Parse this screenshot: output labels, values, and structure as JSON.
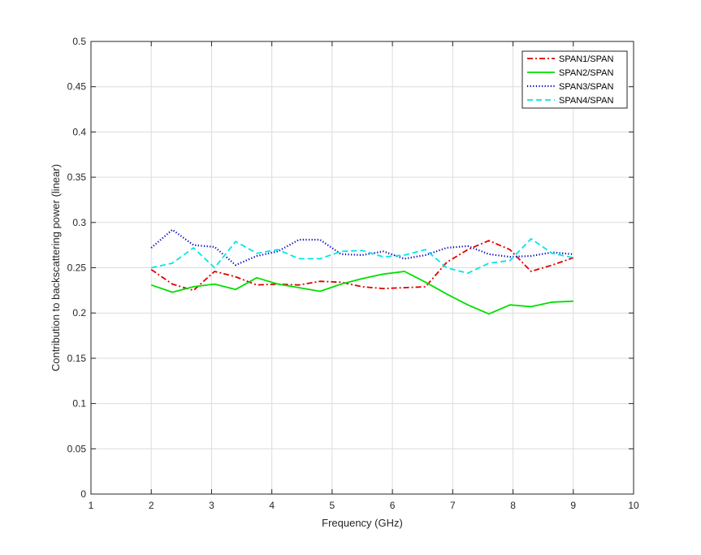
{
  "chart_data": {
    "type": "line",
    "title": "",
    "xlabel": "Frequency (GHz)",
    "ylabel": "Contribution to backscattering power (linear)",
    "xlim": [
      1,
      10
    ],
    "ylim": [
      0,
      0.5
    ],
    "xticks": [
      1,
      2,
      3,
      4,
      5,
      6,
      7,
      8,
      9,
      10
    ],
    "yticks": [
      0,
      0.05,
      0.1,
      0.15,
      0.2,
      0.25,
      0.3,
      0.35,
      0.4,
      0.45,
      0.5
    ],
    "xtick_labels": [
      "1",
      "2",
      "3",
      "4",
      "5",
      "6",
      "7",
      "8",
      "9",
      "10"
    ],
    "ytick_labels": [
      "0",
      "0.05",
      "0.1",
      "0.15",
      "0.2",
      "0.25",
      "0.3",
      "0.35",
      "0.4",
      "0.45",
      "0.5"
    ],
    "grid": true,
    "legend_position": "top-right",
    "x": [
      2,
      2.35,
      2.7,
      3.05,
      3.4,
      3.75,
      4.1,
      4.45,
      4.8,
      5.15,
      5.5,
      5.85,
      6.2,
      6.55,
      6.9,
      7.25,
      7.6,
      7.95,
      8.3,
      8.65,
      9
    ],
    "series": [
      {
        "name": "SPAN1/SPAN",
        "color": "#e00000",
        "dash": "dashdot",
        "values": [
          0.248,
          0.232,
          0.225,
          0.246,
          0.24,
          0.231,
          0.232,
          0.231,
          0.235,
          0.234,
          0.229,
          0.227,
          0.228,
          0.229,
          0.256,
          0.27,
          0.28,
          0.27,
          0.246,
          0.253,
          0.261
        ]
      },
      {
        "name": "SPAN2/SPAN",
        "color": "#00e000",
        "dash": "solid",
        "values": [
          0.231,
          0.223,
          0.229,
          0.232,
          0.226,
          0.239,
          0.232,
          0.228,
          0.224,
          0.232,
          0.238,
          0.243,
          0.246,
          0.234,
          0.221,
          0.209,
          0.199,
          0.209,
          0.207,
          0.212,
          0.213
        ]
      },
      {
        "name": "SPAN3/SPAN",
        "color": "#0000c0",
        "dash": "dotted",
        "values": [
          0.272,
          0.292,
          0.275,
          0.273,
          0.253,
          0.263,
          0.268,
          0.281,
          0.281,
          0.265,
          0.264,
          0.268,
          0.26,
          0.264,
          0.272,
          0.274,
          0.265,
          0.262,
          0.263,
          0.267,
          0.265
        ]
      },
      {
        "name": "SPAN4/SPAN",
        "color": "#00e8e8",
        "dash": "dashed",
        "values": [
          0.25,
          0.255,
          0.272,
          0.25,
          0.279,
          0.266,
          0.27,
          0.26,
          0.26,
          0.268,
          0.269,
          0.262,
          0.264,
          0.27,
          0.25,
          0.244,
          0.255,
          0.258,
          0.282,
          0.266,
          0.261
        ]
      }
    ]
  }
}
